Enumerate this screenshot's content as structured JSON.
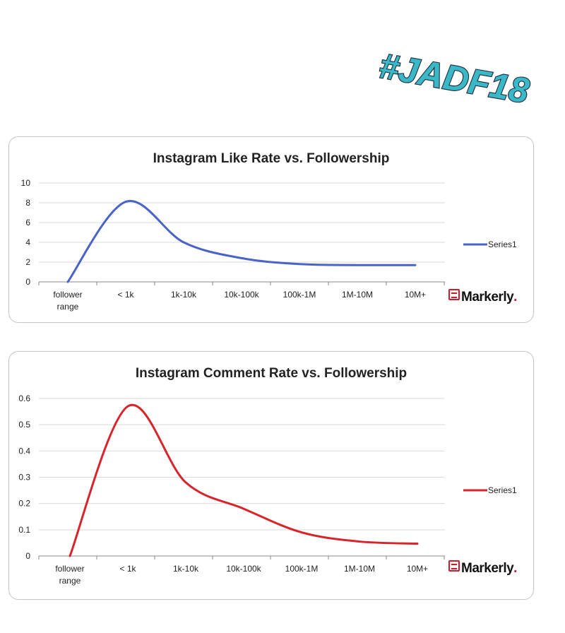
{
  "hashtag": "#JADF18",
  "colors": {
    "like_series": "#4a63c8",
    "comment_series": "#d8242b",
    "hashtag_fill": "#3bb8c8",
    "hashtag_stroke": "#1a2a3a",
    "gridline": "#d9d9d9",
    "brand_red": "#d11a2a"
  },
  "logo": {
    "text": "Markerly",
    "dot": "."
  },
  "chart_data": [
    {
      "type": "line",
      "title": "Instagram Like Rate vs. Followership",
      "xlabel": "",
      "ylabel": "",
      "categories": [
        "follower range",
        "< 1k",
        "1k-10k",
        "10k-100k",
        "100k-1M",
        "1M-10M",
        "10M+"
      ],
      "ylim": [
        0,
        10
      ],
      "yticks": [
        "0",
        "2",
        "4",
        "6",
        "8",
        "10"
      ],
      "grid": true,
      "legend": "right",
      "series": [
        {
          "name": "Series1",
          "values": [
            0,
            8.1,
            4.0,
            2.4,
            1.8,
            1.7,
            1.7
          ]
        }
      ]
    },
    {
      "type": "line",
      "title": "Instagram Comment Rate vs. Followership",
      "xlabel": "",
      "ylabel": "",
      "categories": [
        "follower range",
        "< 1k",
        "1k-10k",
        "10k-100k",
        "100k-1M",
        "1M-10M",
        "10M+"
      ],
      "ylim": [
        0,
        0.6
      ],
      "yticks": [
        "0",
        "0.1",
        "0.2",
        "0.3",
        "0.4",
        "0.5",
        "0.6"
      ],
      "grid": true,
      "legend": "right",
      "series": [
        {
          "name": "Series1",
          "values": [
            0,
            0.57,
            0.28,
            0.18,
            0.09,
            0.055,
            0.047
          ]
        }
      ]
    }
  ]
}
